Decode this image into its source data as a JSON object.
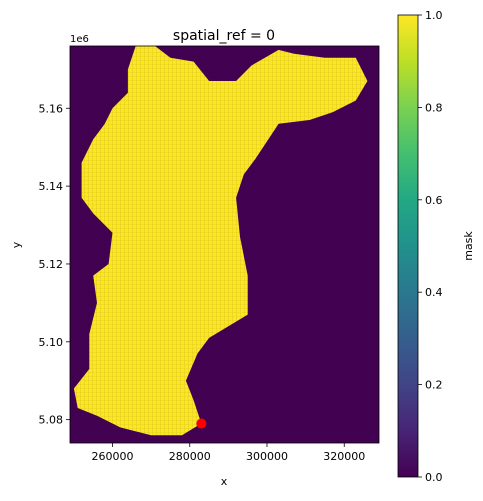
{
  "chart_data": {
    "type": "heatmap",
    "title": "spatial_ref = 0",
    "xlabel": "x",
    "ylabel": "y",
    "y_offset_label": "1e6",
    "xlim": [
      249000,
      329000
    ],
    "ylim": [
      5074000,
      5176000
    ],
    "x_ticks": [
      260000,
      280000,
      300000,
      320000
    ],
    "x_tick_labels": [
      "260000",
      "280000",
      "300000",
      "320000"
    ],
    "y_ticks": [
      5.08,
      5.1,
      5.12,
      5.14,
      5.16
    ],
    "y_tick_labels": [
      "5.08",
      "5.10",
      "5.12",
      "5.14",
      "5.16"
    ],
    "colorbar": {
      "label": "mask",
      "range": [
        0,
        1
      ],
      "ticks": [
        0,
        0.2,
        0.4,
        0.6,
        0.8,
        1.0
      ],
      "tick_labels": [
        "0.0",
        "0.2",
        "0.4",
        "0.6",
        "0.8",
        "1.0"
      ],
      "colormap": "viridis"
    },
    "mask_value_inside": 1,
    "mask_value_outside": 0,
    "mask_boundary": [
      [
        266000,
        5176000
      ],
      [
        271000,
        5176000
      ],
      [
        275000,
        5173000
      ],
      [
        281000,
        5172000
      ],
      [
        285000,
        5167000
      ],
      [
        292000,
        5167000
      ],
      [
        296000,
        5171000
      ],
      [
        303000,
        5175000
      ],
      [
        307000,
        5174000
      ],
      [
        315000,
        5173000
      ],
      [
        323000,
        5173000
      ],
      [
        326000,
        5167000
      ],
      [
        323000,
        5162000
      ],
      [
        317000,
        5159000
      ],
      [
        311000,
        5157000
      ],
      [
        303000,
        5156000
      ],
      [
        297000,
        5147000
      ],
      [
        294000,
        5143000
      ],
      [
        292000,
        5137000
      ],
      [
        293000,
        5127000
      ],
      [
        295000,
        5117000
      ],
      [
        295000,
        5107000
      ],
      [
        290000,
        5104000
      ],
      [
        285000,
        5101000
      ],
      [
        282000,
        5097000
      ],
      [
        279000,
        5090000
      ],
      [
        281000,
        5085000
      ],
      [
        283000,
        5079000
      ],
      [
        278000,
        5076000
      ],
      [
        270000,
        5076000
      ],
      [
        262000,
        5078000
      ],
      [
        256000,
        5081000
      ],
      [
        251000,
        5083000
      ],
      [
        250000,
        5088000
      ],
      [
        254000,
        5093000
      ],
      [
        254000,
        5102000
      ],
      [
        256000,
        5110000
      ],
      [
        255000,
        5117000
      ],
      [
        259000,
        5120000
      ],
      [
        260000,
        5128000
      ],
      [
        255000,
        5133000
      ],
      [
        252000,
        5137000
      ],
      [
        252000,
        5146000
      ],
      [
        255000,
        5152000
      ],
      [
        258000,
        5156000
      ],
      [
        260000,
        5160000
      ],
      [
        264000,
        5164000
      ],
      [
        264000,
        5170000
      ]
    ],
    "point": {
      "x": 283000,
      "y": 5079000,
      "color": "#ff0000"
    },
    "colors": {
      "inside": "#fde725",
      "outside": "#440154"
    }
  }
}
